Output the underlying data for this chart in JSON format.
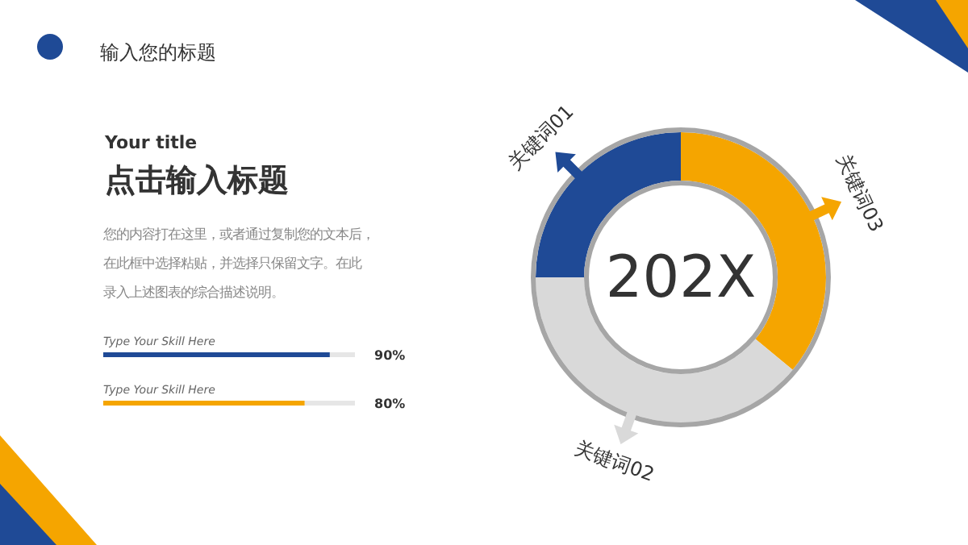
{
  "chart_data": [
    {
      "type": "other",
      "title": "点击输入标题",
      "subtitle": "Your title",
      "annotations": [
        "输入您的标题",
        "您的内容打在这里，或者通过复制您的文本后，",
        "在此框中选择粘贴，并选择只保留文字。在此",
        "录入上述图表的综合描述说明。"
      ]
    },
    {
      "type": "bar",
      "orientation": "horizontal",
      "categories": [
        "Type Your Skill Here",
        "Type Your Skill Here"
      ],
      "values": [
        90,
        80
      ],
      "colors": [
        "#1f4a96",
        "#f5a500"
      ],
      "value_labels": [
        "90%",
        "80%"
      ],
      "xlim": [
        0,
        100
      ]
    },
    {
      "type": "donut",
      "categories": [
        "关键词03",
        "关键词02",
        "关键词01"
      ],
      "values": [
        36,
        39,
        25
      ],
      "colors": [
        "#f5a500",
        "#d9d9d9",
        "#1f4a96"
      ],
      "annotations": [
        "202X"
      ]
    }
  ]
}
